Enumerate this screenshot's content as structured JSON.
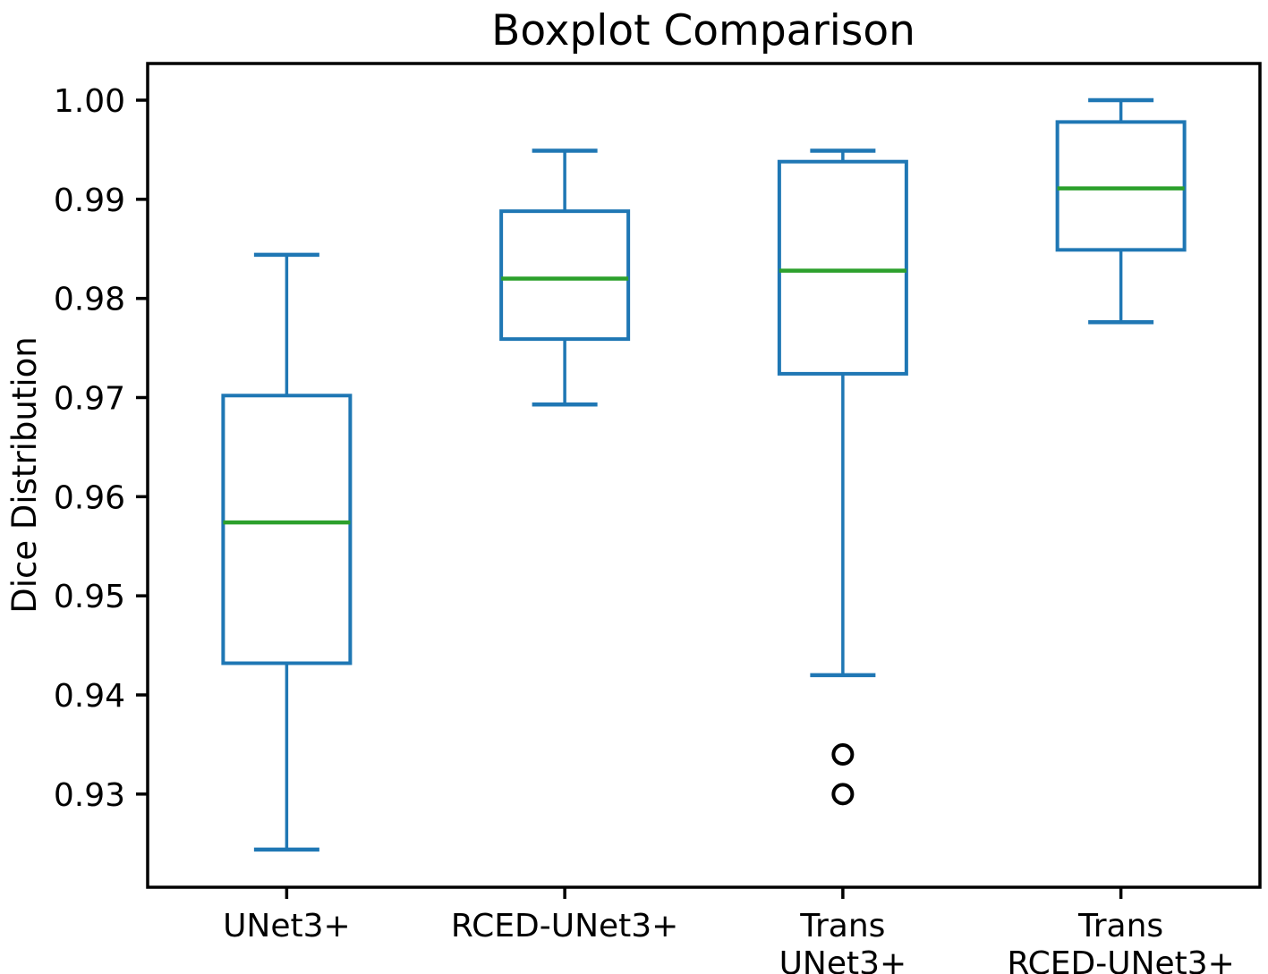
{
  "chart_data": {
    "type": "boxplot",
    "title": "Boxplot Comparison",
    "ylabel": "Dice Distribution",
    "xlabel": "",
    "grid": false,
    "legend": null,
    "ylim": [
      0.9206,
      1.0037
    ],
    "y_ticks": [
      {
        "value": 0.93,
        "label": "0.93"
      },
      {
        "value": 0.94,
        "label": "0.94"
      },
      {
        "value": 0.95,
        "label": "0.95"
      },
      {
        "value": 0.96,
        "label": "0.96"
      },
      {
        "value": 0.97,
        "label": "0.97"
      },
      {
        "value": 0.98,
        "label": "0.98"
      },
      {
        "value": 0.99,
        "label": "0.99"
      },
      {
        "value": 1.0,
        "label": "1.00"
      }
    ],
    "categories": [
      "UNet3+",
      "RCED-UNet3+",
      "Trans UNet3+",
      "Trans RCED-UNet3+"
    ],
    "series": [
      {
        "label_lines": [
          "UNet3+"
        ],
        "position": 1,
        "whisker_low": 0.9244,
        "q1": 0.9432,
        "median": 0.9574,
        "q3": 0.9702,
        "whisker_high": 0.9844,
        "outliers": []
      },
      {
        "label_lines": [
          "RCED-UNet3+"
        ],
        "position": 2,
        "whisker_low": 0.9693,
        "q1": 0.9759,
        "median": 0.982,
        "q3": 0.9888,
        "whisker_high": 0.9949,
        "outliers": []
      },
      {
        "label_lines": [
          "Trans",
          "UNet3+"
        ],
        "position": 3,
        "whisker_low": 0.942,
        "q1": 0.9724,
        "median": 0.9828,
        "q3": 0.9938,
        "whisker_high": 0.9949,
        "outliers": [
          0.934,
          0.93
        ]
      },
      {
        "label_lines": [
          "Trans",
          "RCED-UNet3+"
        ],
        "position": 4,
        "whisker_low": 0.9776,
        "q1": 0.9849,
        "median": 0.9911,
        "q3": 0.9978,
        "whisker_high": 1.0,
        "outliers": []
      }
    ],
    "colors": {
      "box": "#1f77b4",
      "whisker": "#1f77b4",
      "cap": "#1f77b4",
      "median": "#2ca02c",
      "outlier_edge": "#000000",
      "axis": "#000000",
      "text": "#000000",
      "background": "#ffffff"
    }
  }
}
